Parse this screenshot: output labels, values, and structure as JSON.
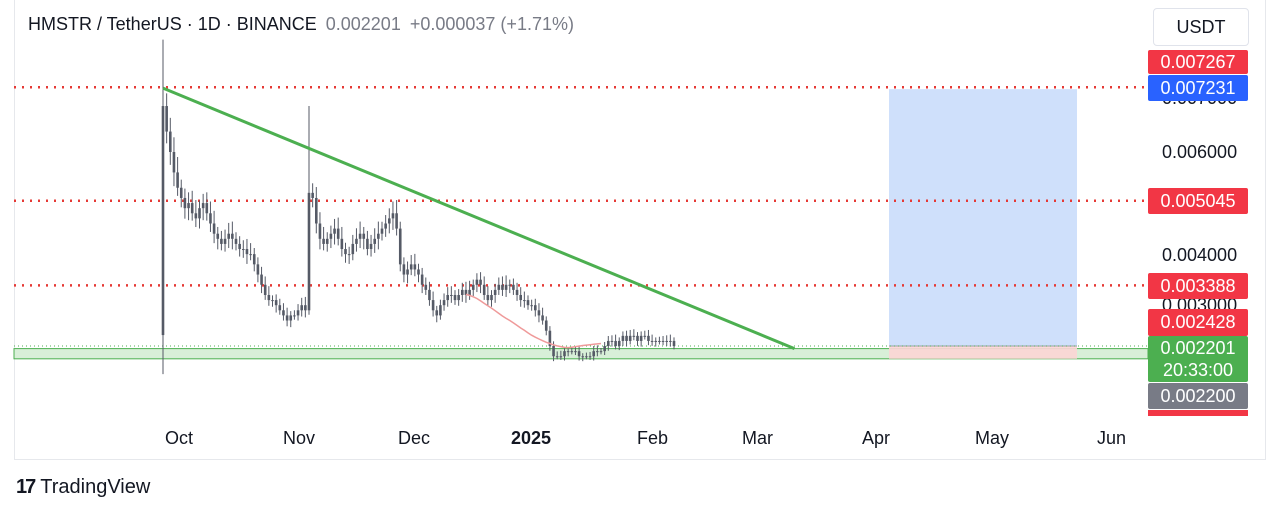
{
  "header": {
    "symbol": "HMSTR / TetherUS · 1D · BINANCE",
    "price": "0.002201",
    "change": "+0.000037 (+1.71%)"
  },
  "currency": "USDT",
  "brand": {
    "logo": "17",
    "name": "TradingView"
  },
  "colors": {
    "trendline": "#4caf50",
    "level_line": "#e53935",
    "target_zone": "#cfe0fb",
    "stop_zone": "#fcd5d5",
    "support_zone": "#d8efd8",
    "ma_line": "#ef9a9a",
    "candle": "#555a66"
  },
  "price_tags": [
    {
      "text": "0.007267",
      "color": "#f23645"
    },
    {
      "text": "0.007231",
      "color": "#2962ff"
    },
    {
      "text": "0.005045",
      "color": "#f23645"
    },
    {
      "text": "0.003388",
      "color": "#f23645"
    },
    {
      "text": "0.002428",
      "color": "#f23645"
    },
    {
      "text": "0.002201",
      "sub": "20:33:00",
      "color": "#4caf50"
    },
    {
      "text": "0.002200",
      "color": "#787b86"
    }
  ],
  "y_axis_ticks": [
    "0.007000",
    "0.006000",
    "0.004000",
    "0.003000"
  ],
  "x_axis_ticks": [
    "Oct",
    "Nov",
    "Dec",
    "2025",
    "Feb",
    "Mar",
    "Apr",
    "May",
    "Jun"
  ],
  "chart_data": {
    "type": "candlestick",
    "symbol": "HMSTR / TetherUS",
    "interval": "1D",
    "exchange": "BINANCE",
    "x_ticks": [
      "Oct",
      "Nov",
      "Dec",
      "2025",
      "Feb",
      "Mar",
      "Apr",
      "May",
      "Jun"
    ],
    "ylim": [
      0.0015,
      0.008
    ],
    "dates_start": "2024-09-26",
    "close_series": [
      0.0069,
      0.0064,
      0.006,
      0.0056,
      0.0053,
      0.0051,
      0.0049,
      0.005,
      0.0048,
      0.0047,
      0.0049,
      0.005,
      0.0048,
      0.0046,
      0.0044,
      0.0043,
      0.0042,
      0.0043,
      0.0044,
      0.0043,
      0.0042,
      0.0041,
      0.0041,
      0.004,
      0.004,
      0.0038,
      0.0036,
      0.0034,
      0.0032,
      0.0031,
      0.0031,
      0.003,
      0.0029,
      0.0028,
      0.0027,
      0.0028,
      0.0028,
      0.0029,
      0.003,
      0.0029,
      0.0052,
      0.0051,
      0.0046,
      0.0043,
      0.0042,
      0.0043,
      0.0044,
      0.0045,
      0.0043,
      0.0041,
      0.004,
      0.004,
      0.0042,
      0.0043,
      0.0044,
      0.0043,
      0.0041,
      0.0042,
      0.0043,
      0.0044,
      0.0045,
      0.0046,
      0.0047,
      0.0048,
      0.0045,
      0.0038,
      0.0036,
      0.0037,
      0.0038,
      0.0037,
      0.0036,
      0.0034,
      0.0033,
      0.0031,
      0.0029,
      0.0028,
      0.003,
      0.0031,
      0.0032,
      0.0032,
      0.0031,
      0.0032,
      0.0033,
      0.0032,
      0.0033,
      0.0034,
      0.0035,
      0.0034,
      0.0032,
      0.0031,
      0.0032,
      0.0033,
      0.0034,
      0.0033,
      0.0034,
      0.0034,
      0.0033,
      0.0032,
      0.0031,
      0.0031,
      0.003,
      0.003,
      0.0029,
      0.0028,
      0.0027,
      0.0025,
      0.0022,
      0.002,
      0.002,
      0.002,
      0.0021,
      0.0021,
      0.0021,
      0.0021,
      0.002,
      0.002,
      0.002,
      0.002,
      0.0021,
      0.0021,
      0.0021,
      0.0022,
      0.0023,
      0.0023,
      0.0022,
      0.0023,
      0.0024,
      0.0023,
      0.0024,
      0.0024,
      0.0023,
      0.0024,
      0.0024,
      0.0023,
      0.0023,
      0.0023,
      0.0023,
      0.0023,
      0.0023,
      0.0023,
      0.0022
    ],
    "annotations": {
      "horizontal_levels": [
        0.007267,
        0.005045,
        0.003388
      ],
      "current_price": 0.002201,
      "support_zone": [
        0.00195,
        0.00215
      ],
      "trendline": {
        "from": [
          "2024-09-26",
          0.00725
        ],
        "to": [
          "2025-03-18",
          0.00215
        ]
      },
      "long_position": {
        "entry": 0.002201,
        "target": 0.007231,
        "stop": 0.00195
      }
    }
  }
}
